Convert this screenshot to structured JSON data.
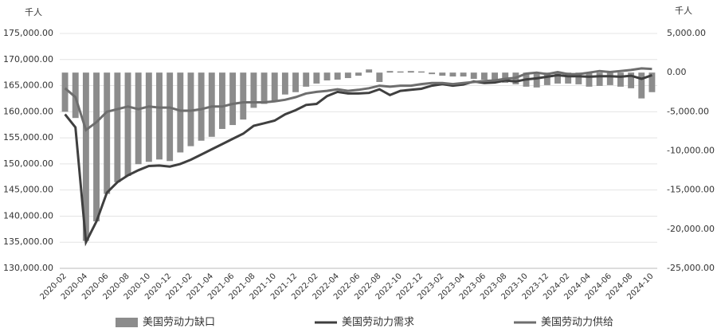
{
  "chart_data": {
    "type": "bar_line",
    "y_unit": "千人",
    "y2_unit": "千人",
    "categories": [
      "2020-02",
      null,
      "2020-04",
      null,
      "2020-06",
      null,
      "2020-08",
      null,
      "2020-10",
      null,
      "2020-12",
      null,
      "2021-02",
      null,
      "2021-04",
      null,
      "2021-06",
      null,
      "2021-08",
      null,
      "2021-10",
      null,
      "2021-12",
      null,
      "2022-02",
      null,
      "2022-04",
      null,
      "2022-06",
      null,
      "2022-08",
      null,
      "2022-10",
      null,
      "2022-12",
      null,
      "2023-02",
      null,
      "2023-04",
      null,
      "2023-06",
      null,
      "2023-08",
      null,
      "2023-10",
      null,
      "2023-12",
      null,
      "2024-02",
      null,
      "2024-04",
      null,
      "2024-06",
      null,
      "2024-08",
      null,
      "2024-10"
    ],
    "series": [
      {
        "name": "美国劳动力缺口",
        "kind": "bar",
        "axis": "y2",
        "color": "#8c8c8c",
        "values": [
          -5000,
          -5800,
          -21500,
          -19000,
          -15500,
          -14000,
          -13200,
          -11700,
          -11400,
          -11100,
          -11300,
          -10200,
          -9400,
          -8700,
          -8200,
          -7200,
          -6700,
          -6000,
          -4500,
          -4000,
          -3700,
          -2800,
          -2500,
          -1800,
          -1400,
          -1000,
          -900,
          -700,
          -400,
          400,
          -1200,
          200,
          150,
          200,
          150,
          -200,
          -400,
          -500,
          -500,
          -800,
          -900,
          -1200,
          -1300,
          -1500,
          -1800,
          -1900,
          -1600,
          -1400,
          -1400,
          -1500,
          -1800,
          -1700,
          -1600,
          -1800,
          -2000,
          -3300,
          -2500
        ]
      },
      {
        "name": "美国劳动力需求",
        "kind": "line",
        "axis": "y",
        "color": "#3f3f3f",
        "values": [
          159500,
          157000,
          135000,
          139000,
          144500,
          146500,
          147800,
          148800,
          149600,
          149700,
          149500,
          150000,
          150800,
          151800,
          152800,
          153800,
          154800,
          155800,
          157300,
          157800,
          158300,
          159500,
          160300,
          161300,
          161500,
          163000,
          163800,
          163500,
          163500,
          163600,
          164300,
          163200,
          164000,
          164200,
          164400,
          165000,
          165300,
          165000,
          165200,
          165800,
          165500,
          165600,
          166000,
          165800,
          166200,
          166400,
          166700,
          167000,
          166800,
          166800,
          166700,
          166800,
          166800,
          166700,
          166900,
          166300,
          167000
        ]
      },
      {
        "name": "美国劳动力供给",
        "kind": "line",
        "axis": "y",
        "color": "#6e6e6e",
        "values": [
          164500,
          162800,
          156500,
          158000,
          160000,
          160500,
          161000,
          160500,
          161000,
          160800,
          160800,
          160200,
          160200,
          160500,
          161000,
          161000,
          161500,
          161800,
          161800,
          161800,
          162000,
          162300,
          162800,
          163500,
          163800,
          164000,
          164300,
          164000,
          164200,
          164500,
          165000,
          164800,
          165000,
          165000,
          165300,
          165500,
          165500,
          165300,
          165500,
          165700,
          165900,
          166000,
          166300,
          166500,
          167300,
          167500,
          167200,
          167600,
          167200,
          167200,
          167500,
          167800,
          167600,
          167800,
          168000,
          168300,
          168200
        ]
      }
    ],
    "ylim": [
      130000,
      175000
    ],
    "yticks": [
      {
        "value": 130000,
        "label": "130,000.00"
      },
      {
        "value": 135000,
        "label": "135,000.00"
      },
      {
        "value": 140000,
        "label": "140,000.00"
      },
      {
        "value": 145000,
        "label": "145,000.00"
      },
      {
        "value": 150000,
        "label": "150,000.00"
      },
      {
        "value": 155000,
        "label": "155,000.00"
      },
      {
        "value": 160000,
        "label": "160,000.00"
      },
      {
        "value": 165000,
        "label": "165,000.00"
      },
      {
        "value": 170000,
        "label": "170,000.00"
      },
      {
        "value": 175000,
        "label": "175,000.00"
      }
    ],
    "y2lim": [
      -25000,
      5000
    ],
    "y2ticks": [
      {
        "value": -25000,
        "label": "-25,000.00"
      },
      {
        "value": -20000,
        "label": "-20,000.00"
      },
      {
        "value": -15000,
        "label": "-15,000.00"
      },
      {
        "value": -10000,
        "label": "-10,000.00"
      },
      {
        "value": -5000,
        "label": "-5,000.00"
      },
      {
        "value": 0,
        "label": "0.00"
      },
      {
        "value": 5000,
        "label": "5,000.00"
      }
    ],
    "grid": true,
    "legend": "bottom"
  }
}
